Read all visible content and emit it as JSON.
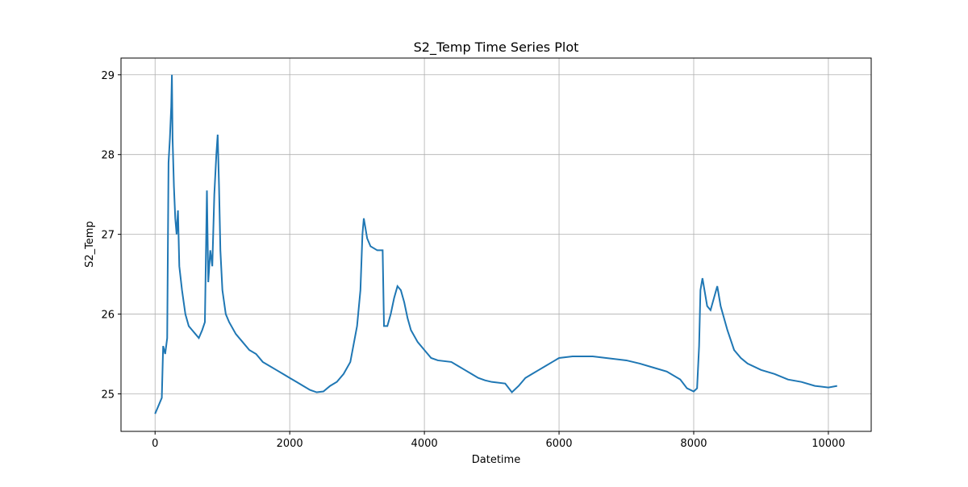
{
  "chart_data": {
    "type": "line",
    "title": "S2_Temp Time Series Plot",
    "x_label": "Datetime",
    "y_label": "S2_Temp",
    "x": [
      0,
      50,
      100,
      120,
      150,
      180,
      200,
      220,
      240,
      250,
      260,
      280,
      300,
      320,
      340,
      360,
      400,
      450,
      500,
      550,
      600,
      650,
      700,
      740,
      770,
      790,
      820,
      850,
      880,
      910,
      930,
      950,
      970,
      1000,
      1050,
      1100,
      1200,
      1300,
      1400,
      1500,
      1600,
      1700,
      1800,
      1900,
      2000,
      2100,
      2200,
      2300,
      2400,
      2500,
      2600,
      2700,
      2800,
      2900,
      3000,
      3050,
      3080,
      3100,
      3150,
      3200,
      3300,
      3380,
      3400,
      3450,
      3500,
      3550,
      3600,
      3650,
      3700,
      3750,
      3800,
      3900,
      4000,
      4100,
      4200,
      4400,
      4500,
      4600,
      4700,
      4800,
      4900,
      5000,
      5200,
      5300,
      5400,
      5500,
      5600,
      5700,
      5800,
      5900,
      6000,
      6200,
      6500,
      6800,
      7000,
      7200,
      7400,
      7600,
      7800,
      7900,
      8000,
      8050,
      8080,
      8100,
      8130,
      8200,
      8250,
      8300,
      8350,
      8400,
      8500,
      8600,
      8700,
      8800,
      9000,
      9200,
      9400,
      9600,
      9800,
      10000,
      10130
    ],
    "series": [
      {
        "name": "S2_Temp",
        "color": "#1f77b4",
        "values": [
          24.75,
          24.85,
          24.95,
          25.6,
          25.5,
          25.7,
          27.9,
          28.2,
          28.6,
          29.0,
          28.2,
          27.6,
          27.2,
          27.0,
          27.3,
          26.6,
          26.3,
          26.0,
          25.85,
          25.8,
          25.75,
          25.7,
          25.8,
          25.9,
          27.55,
          26.4,
          26.8,
          26.6,
          27.5,
          28.0,
          28.25,
          27.6,
          26.8,
          26.3,
          26.0,
          25.9,
          25.75,
          25.65,
          25.55,
          25.5,
          25.4,
          25.35,
          25.3,
          25.25,
          25.2,
          25.15,
          25.1,
          25.05,
          25.02,
          25.03,
          25.1,
          25.15,
          25.25,
          25.4,
          25.85,
          26.3,
          27.0,
          27.2,
          26.95,
          26.85,
          26.8,
          26.8,
          25.85,
          25.85,
          26.0,
          26.2,
          26.35,
          26.3,
          26.15,
          25.95,
          25.8,
          25.65,
          25.55,
          25.45,
          25.42,
          25.4,
          25.35,
          25.3,
          25.25,
          25.2,
          25.17,
          25.15,
          25.13,
          25.02,
          25.1,
          25.2,
          25.25,
          25.3,
          25.35,
          25.4,
          25.45,
          25.47,
          25.47,
          25.44,
          25.42,
          25.38,
          25.33,
          25.28,
          25.18,
          25.07,
          25.03,
          25.07,
          25.6,
          26.3,
          26.45,
          26.1,
          26.05,
          26.2,
          26.35,
          26.1,
          25.8,
          25.55,
          25.45,
          25.38,
          25.3,
          25.25,
          25.18,
          25.15,
          25.1,
          25.08,
          25.1
        ]
      }
    ],
    "xlim": [
      -506,
      10636
    ],
    "ylim": [
      24.53,
      29.21
    ],
    "xticks": [
      0,
      2000,
      4000,
      6000,
      8000,
      10000
    ],
    "yticks": [
      25,
      26,
      27,
      28,
      29
    ],
    "grid": true
  }
}
